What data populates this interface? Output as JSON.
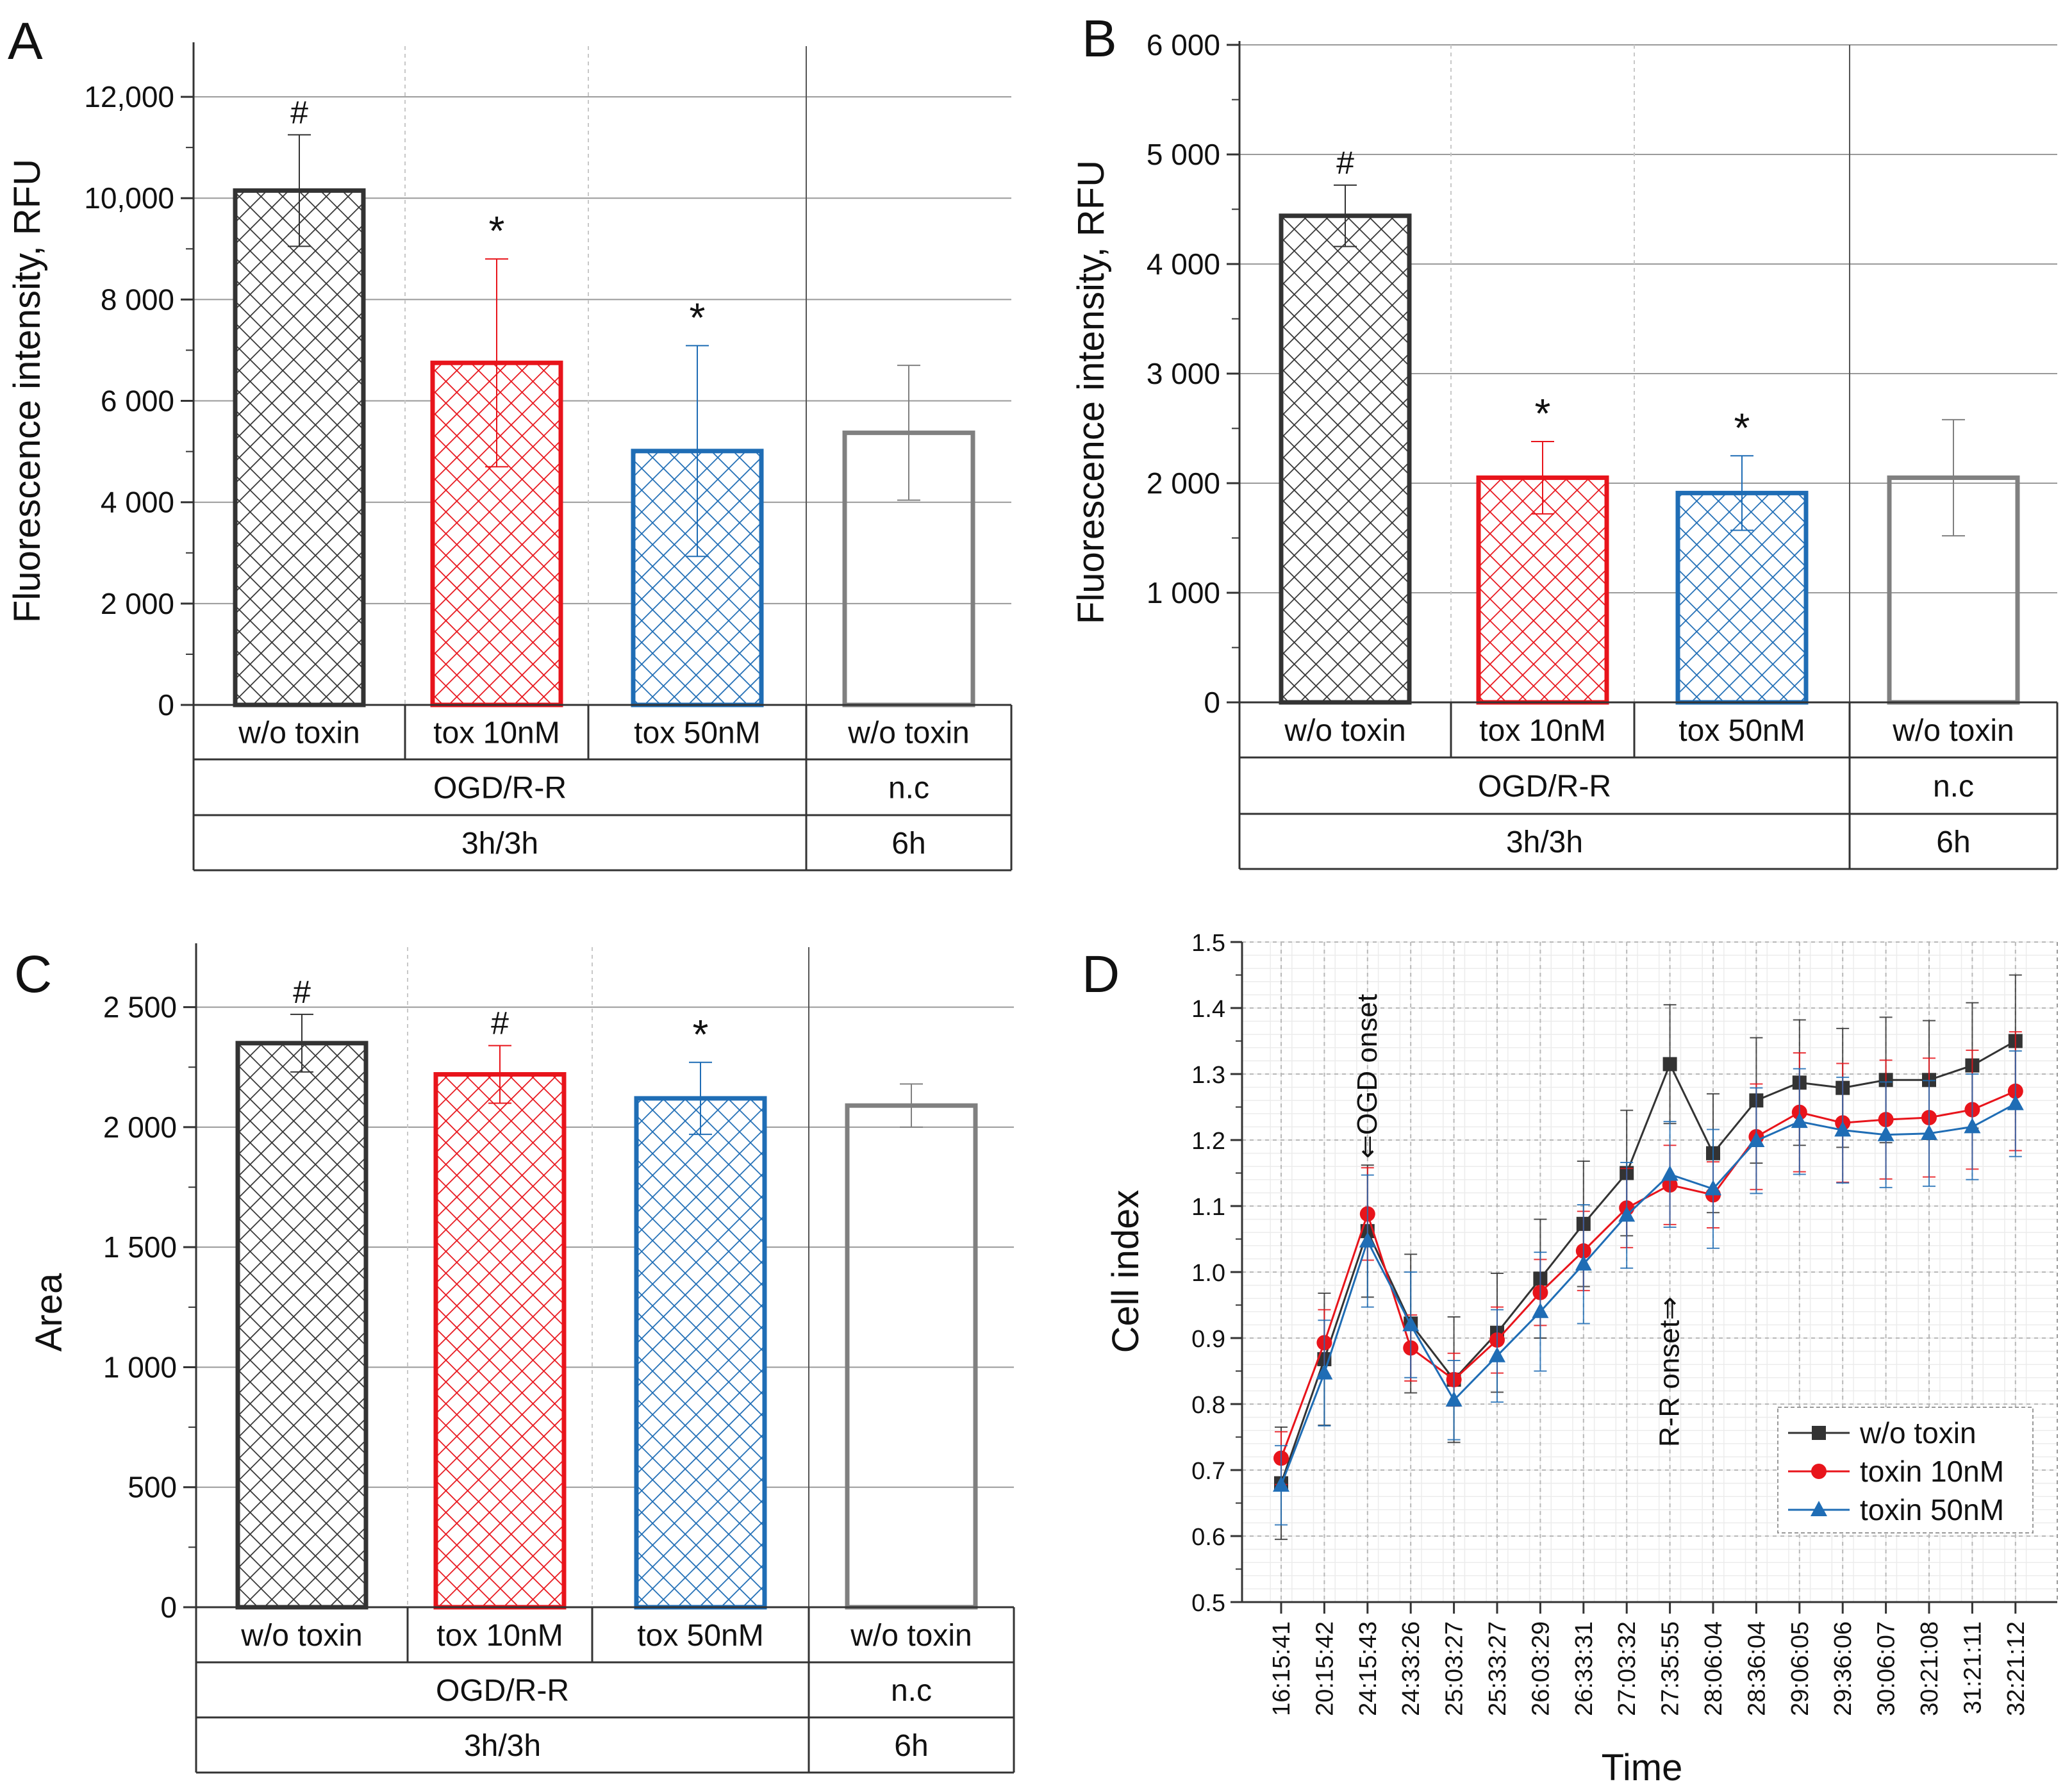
{
  "colors": {
    "black": "#333333",
    "red": "#e8141b",
    "blue": "#1f6db5",
    "gray": "#808080",
    "grid": "#b3b3b3"
  },
  "chart_data": [
    {
      "id": "A",
      "panel_label": "A",
      "type": "bar",
      "ylabel": "Fluorescence intensity, RFU",
      "ylim": [
        0,
        13000
      ],
      "yticks": [
        0,
        2000,
        4000,
        6000,
        8000,
        10000,
        12000
      ],
      "ytick_labels": [
        "0",
        "2 000",
        "4 000",
        "6 000",
        "8 000",
        "10,000",
        "12,000"
      ],
      "categories": [
        "w/o toxin",
        "tox 10nM",
        "tox 50nM",
        "w/o toxin"
      ],
      "values": [
        10150,
        6750,
        5010,
        5370
      ],
      "errors": [
        1100,
        2050,
        2080,
        1330
      ],
      "colors": [
        "black",
        "red",
        "blue",
        "gray"
      ],
      "hatched": [
        true,
        true,
        true,
        false
      ],
      "annotations": [
        "#",
        "*",
        "*",
        ""
      ],
      "group_rows": [
        [
          {
            "label": "OGD/R-R",
            "span": 3
          },
          {
            "label": "n.c",
            "span": 1
          }
        ],
        [
          {
            "label": "3h/3h",
            "span": 3
          },
          {
            "label": "6h",
            "span": 1
          }
        ]
      ]
    },
    {
      "id": "B",
      "panel_label": "B",
      "type": "bar",
      "ylabel": "Fluorescence intensity, RFU",
      "ylim": [
        0,
        6000
      ],
      "yticks": [
        0,
        1000,
        2000,
        3000,
        4000,
        5000,
        6000
      ],
      "ytick_labels": [
        "0",
        "1 000",
        "2 000",
        "3 000",
        "4 000",
        "5 000",
        "6 000"
      ],
      "categories": [
        "w/o toxin",
        "tox 10nM",
        "tox 50nM",
        "w/o toxin"
      ],
      "values": [
        4440,
        2050,
        1910,
        2050
      ],
      "errors": [
        280,
        330,
        340,
        530
      ],
      "colors": [
        "black",
        "red",
        "blue",
        "gray"
      ],
      "hatched": [
        true,
        true,
        true,
        false
      ],
      "annotations": [
        "#",
        "*",
        "*",
        ""
      ],
      "group_rows": [
        [
          {
            "label": "OGD/R-R",
            "span": 3
          },
          {
            "label": "n.c",
            "span": 1
          }
        ],
        [
          {
            "label": "3h/3h",
            "span": 3
          },
          {
            "label": "6h",
            "span": 1
          }
        ]
      ]
    },
    {
      "id": "C",
      "panel_label": "C",
      "type": "bar",
      "ylabel": "Area",
      "ylim": [
        0,
        2750
      ],
      "yticks": [
        0,
        500,
        1000,
        1500,
        2000,
        2500
      ],
      "ytick_labels": [
        "0",
        "500",
        "1 000",
        "1 500",
        "2 000",
        "2 500"
      ],
      "categories": [
        "w/o toxin",
        "tox 10nM",
        "tox 50nM",
        "w/o toxin"
      ],
      "values": [
        2350,
        2220,
        2120,
        2090
      ],
      "errors": [
        120,
        120,
        150,
        90
      ],
      "colors": [
        "black",
        "red",
        "blue",
        "gray"
      ],
      "hatched": [
        true,
        true,
        true,
        false
      ],
      "annotations": [
        "#",
        "#",
        "*",
        ""
      ],
      "group_rows": [
        [
          {
            "label": "OGD/R-R",
            "span": 3
          },
          {
            "label": "n.c",
            "span": 1
          }
        ],
        [
          {
            "label": "3h/3h",
            "span": 3
          },
          {
            "label": "6h",
            "span": 1
          }
        ]
      ]
    },
    {
      "id": "D",
      "panel_label": "D",
      "type": "line",
      "xlabel": "Time",
      "ylabel": "Cell index",
      "ylim": [
        0.5,
        1.5
      ],
      "yticks": [
        0.5,
        0.6,
        0.7,
        0.8,
        0.9,
        1.0,
        1.1,
        1.2,
        1.3,
        1.4,
        1.5
      ],
      "ytick_labels": [
        "0.5",
        "0.6",
        "0.7",
        "0.8",
        "0.9",
        "1.0",
        "1.1",
        "1.2",
        "1.3",
        "1.4",
        "1.5"
      ],
      "x": [
        "16:15:41",
        "20:15:42",
        "24:15:43",
        "24:33:26",
        "25:03:27",
        "25:33:27",
        "26:03:29",
        "26:33:31",
        "27:03:32",
        "27:35:55",
        "28:06:04",
        "28:36:04",
        "29:06:05",
        "29:36:06",
        "30:06:07",
        "30:21:08",
        "31:21:11",
        "32:21:12"
      ],
      "series": [
        {
          "name": "w/o toxin",
          "color": "black",
          "marker": "square",
          "values": [
            0.68,
            0.868,
            1.062,
            0.922,
            0.837,
            0.908,
            0.99,
            1.073,
            1.15,
            1.315,
            1.18,
            1.26,
            1.287,
            1.279,
            1.291,
            1.291,
            1.313,
            1.35
          ],
          "errors": [
            0.085,
            0.1,
            0.1,
            0.105,
            0.095,
            0.09,
            0.09,
            0.095,
            0.095,
            0.09,
            0.09,
            0.095,
            0.095,
            0.09,
            0.095,
            0.09,
            0.095,
            0.1
          ]
        },
        {
          "name": "toxin 10nM",
          "color": "red",
          "marker": "circle",
          "values": [
            0.718,
            0.893,
            1.088,
            0.885,
            0.837,
            0.897,
            0.969,
            1.032,
            1.097,
            1.132,
            1.117,
            1.205,
            1.242,
            1.226,
            1.231,
            1.234,
            1.246,
            1.274
          ],
          "errors": [
            0.04,
            0.05,
            0.07,
            0.05,
            0.04,
            0.05,
            0.05,
            0.06,
            0.06,
            0.06,
            0.05,
            0.08,
            0.09,
            0.09,
            0.09,
            0.09,
            0.09,
            0.09
          ]
        },
        {
          "name": "toxin 50nM",
          "color": "blue",
          "marker": "triangle",
          "values": [
            0.677,
            0.847,
            1.047,
            0.92,
            0.806,
            0.873,
            0.94,
            1.012,
            1.086,
            1.148,
            1.126,
            1.199,
            1.228,
            1.215,
            1.208,
            1.21,
            1.22,
            1.255
          ],
          "errors": [
            0.06,
            0.08,
            0.1,
            0.08,
            0.06,
            0.07,
            0.09,
            0.09,
            0.08,
            0.08,
            0.09,
            0.08,
            0.08,
            0.08,
            0.08,
            0.08,
            0.08,
            0.08
          ]
        }
      ],
      "annotations": [
        {
          "text": "⇐OGD onset",
          "x_index": 2
        },
        {
          "text": "R-R onset⇒",
          "x_index": 9
        }
      ],
      "legend_position": "bottom-right"
    }
  ]
}
